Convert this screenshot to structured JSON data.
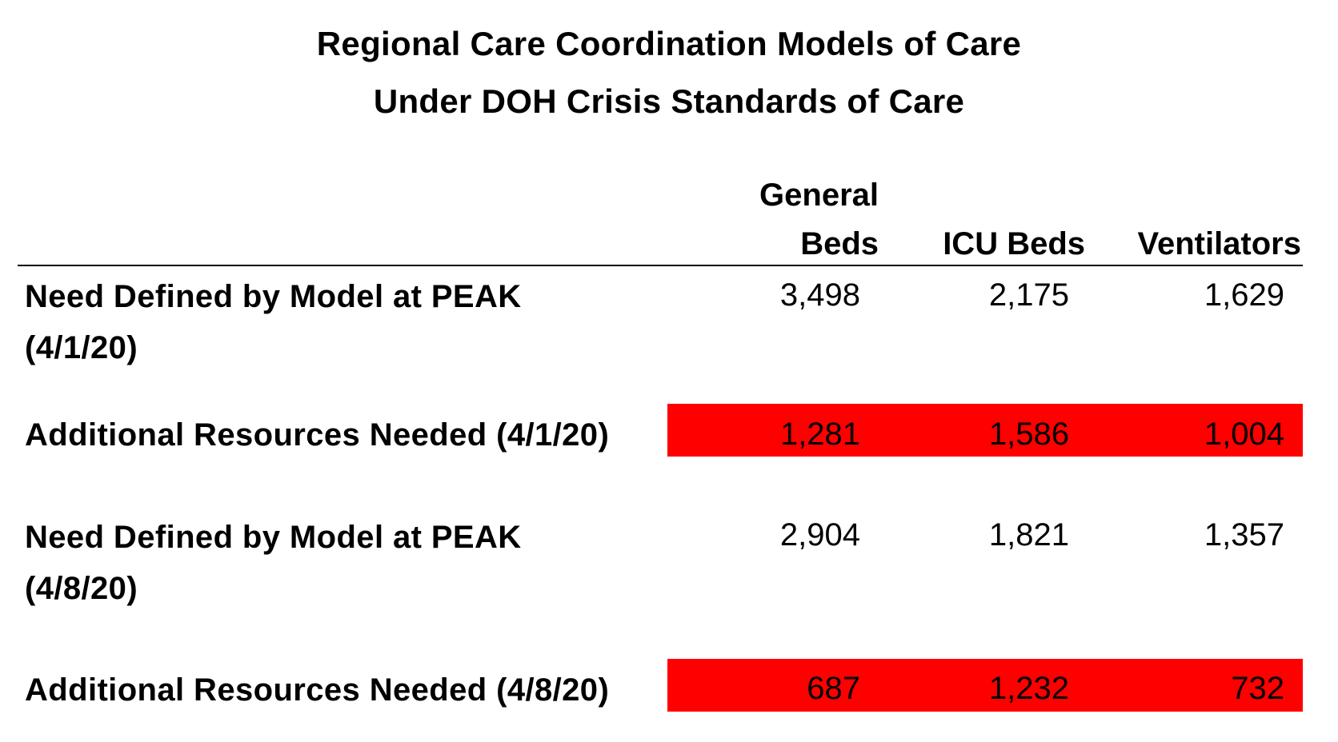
{
  "title": {
    "line1": "Regional Care Coordination Models of Care",
    "line2": "Under DOH Crisis Standards of Care"
  },
  "columns": {
    "general_line1": "General",
    "general_line2": "Beds",
    "icu": "ICU Beds",
    "ventilators": "Ventilators"
  },
  "rows": [
    {
      "label_line1": "Need Defined by Model at PEAK",
      "label_line2": "(4/1/20)",
      "general_beds": "3,498",
      "icu_beds": "2,175",
      "ventilators": "1,629",
      "highlight": false
    },
    {
      "label_line1": "Additional Resources Needed (4/1/20)",
      "general_beds": "1,281",
      "icu_beds": "1,586",
      "ventilators": "1,004",
      "highlight": true
    },
    {
      "label_line1": "Need Defined by Model at PEAK",
      "label_line2": "(4/8/20)",
      "general_beds": "2,904",
      "icu_beds": "1,821",
      "ventilators": "1,357",
      "highlight": false
    },
    {
      "label_line1": "Additional Resources Needed (4/8/20)",
      "general_beds": "687",
      "icu_beds": "1,232",
      "ventilators": "732",
      "highlight": true
    }
  ],
  "colors": {
    "highlight": "#ff0000",
    "text": "#000000",
    "background": "#ffffff"
  }
}
